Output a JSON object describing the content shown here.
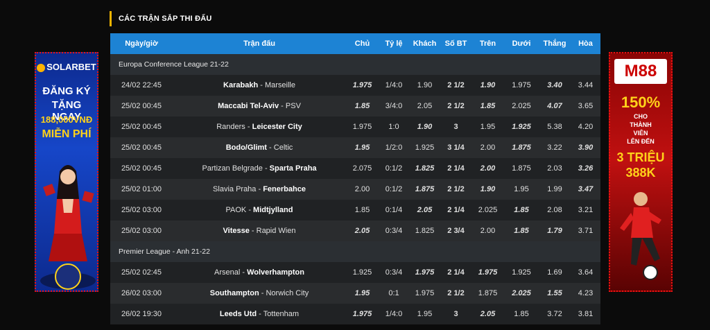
{
  "section_title": "CÁC TRẬN SẮP THI ĐẤU",
  "columns": [
    "Ngày/giờ",
    "Trận đấu",
    "Chủ",
    "Tỷ lệ",
    "Khách",
    "Số BT",
    "Trên",
    "Dưới",
    "Thắng",
    "Hòa"
  ],
  "leagues": [
    {
      "name": "Europa Conference League 21-22",
      "matches": [
        {
          "time": "24/02 22:45",
          "home": "Karabakh",
          "away": "Marseille",
          "fav": "home",
          "chu": "1.975",
          "ty_le": "1/4:0",
          "khach": "1.90",
          "so_bt": "2 1/2",
          "tren": "1.90",
          "duoi": "1.975",
          "thang": "3.40",
          "hoa": "3.44"
        },
        {
          "time": "25/02 00:45",
          "home": "Maccabi Tel-Aviv",
          "away": "PSV",
          "fav": "home",
          "chu": "1.85",
          "ty_le": "3/4:0",
          "khach": "2.05",
          "so_bt": "2 1/2",
          "tren": "1.85",
          "duoi": "2.025",
          "thang": "4.07",
          "hoa": "3.65"
        },
        {
          "time": "25/02 00:45",
          "home": "Randers",
          "away": "Leicester City",
          "fav": "away",
          "chu": "1.975",
          "ty_le": "1:0",
          "khach": "1.90",
          "so_bt": "3",
          "tren": "1.95",
          "duoi": "1.925",
          "thang": "5.38",
          "hoa": "4.20"
        },
        {
          "time": "25/02 00:45",
          "home": "Bodo/Glimt",
          "away": "Celtic",
          "fav": "home",
          "chu": "1.95",
          "ty_le": "1/2:0",
          "khach": "1.925",
          "so_bt": "3 1/4",
          "tren": "2.00",
          "duoi": "1.875",
          "thang": "3.22",
          "hoa": "3.90"
        },
        {
          "time": "25/02 00:45",
          "home": "Partizan Belgrade",
          "away": "Sparta Praha",
          "fav": "away",
          "chu": "2.075",
          "ty_le": "0:1/2",
          "khach": "1.825",
          "so_bt": "2 1/4",
          "tren": "2.00",
          "duoi": "1.875",
          "thang": "2.03",
          "hoa": "3.26"
        },
        {
          "time": "25/02 01:00",
          "home": "Slavia Praha",
          "away": "Fenerbahce",
          "fav": "away",
          "chu": "2.00",
          "ty_le": "0:1/2",
          "khach": "1.875",
          "so_bt": "2 1/2",
          "tren": "1.90",
          "duoi": "1.95",
          "thang": "1.99",
          "hoa": "3.47"
        },
        {
          "time": "25/02 03:00",
          "home": "PAOK",
          "away": "Midtjylland",
          "fav": "away",
          "chu": "1.85",
          "ty_le": "0:1/4",
          "khach": "2.05",
          "so_bt": "2 1/4",
          "tren": "2.025",
          "duoi": "1.85",
          "thang": "2.08",
          "hoa": "3.21"
        },
        {
          "time": "25/02 03:00",
          "home": "Vitesse",
          "away": "Rapid Wien",
          "fav": "home",
          "chu": "2.05",
          "ty_le": "0:3/4",
          "khach": "1.825",
          "so_bt": "2 3/4",
          "tren": "2.00",
          "duoi": "1.85",
          "thang": "1.79",
          "hoa": "3.71"
        }
      ]
    },
    {
      "name": "Premier League - Anh 21-22",
      "matches": [
        {
          "time": "25/02 02:45",
          "home": "Arsenal",
          "away": "Wolverhampton",
          "fav": "away",
          "chu": "1.925",
          "ty_le": "0:3/4",
          "khach": "1.975",
          "so_bt": "2 1/4",
          "tren": "1.975",
          "duoi": "1.925",
          "thang": "1.69",
          "hoa": "3.64"
        },
        {
          "time": "26/02 03:00",
          "home": "Southampton",
          "away": "Norwich City",
          "fav": "home",
          "chu": "1.95",
          "ty_le": "0:1",
          "khach": "1.975",
          "so_bt": "2 1/2",
          "tren": "1.875",
          "duoi": "2.025",
          "thang": "1.55",
          "hoa": "4.23"
        },
        {
          "time": "26/02 19:30",
          "home": "Leeds Utd",
          "away": "Tottenham",
          "fav": "home",
          "chu": "1.975",
          "ty_le": "1/4:0",
          "khach": "1.95",
          "so_bt": "3",
          "tren": "2.05",
          "duoi": "1.85",
          "thang": "3.72",
          "hoa": "3.81"
        }
      ]
    }
  ],
  "styles": {
    "chu": [
      "blue",
      "red",
      "blue-n",
      "red",
      "",
      "",
      "",
      "white-b",
      "",
      "white-b",
      "white-b"
    ],
    "khach": [
      "",
      "",
      "white-b",
      "blue-n",
      "white-b",
      "white-b",
      "red",
      "",
      "blue",
      "",
      ""
    ],
    "tren": [
      "white-b",
      "blue",
      "red-n",
      "",
      "red",
      "blue",
      "red-n",
      "blue-n",
      "blue",
      "blue-n",
      "red"
    ],
    "duoi": [
      "red-n",
      "red-n",
      "blue",
      "red",
      "",
      "",
      "white-b",
      "red",
      "",
      "red",
      "blue-n"
    ],
    "thang": [
      "white-b",
      "red",
      "",
      "",
      "red-n",
      "red-n",
      "",
      "white-b",
      "",
      "white-b",
      "red-n"
    ],
    "hoa": [
      "",
      "red-n",
      "",
      "white-b",
      "blue",
      "white-b",
      "",
      "",
      "",
      "",
      ""
    ]
  },
  "banner_left": {
    "brand": "SOLARBET",
    "line1": "ĐĂNG KÝ",
    "line2": "TẶNG NGAY",
    "line3": "188,000VNĐ",
    "line4": "MIỄN PHÍ"
  },
  "banner_right": {
    "brand": "M88",
    "line1": "150%",
    "line2": "CHO",
    "line3": "THÀNH",
    "line4": "VIÊN",
    "line5": "LÊN ĐẾN",
    "line6": "3 TRIỆU",
    "line7": "388K"
  }
}
